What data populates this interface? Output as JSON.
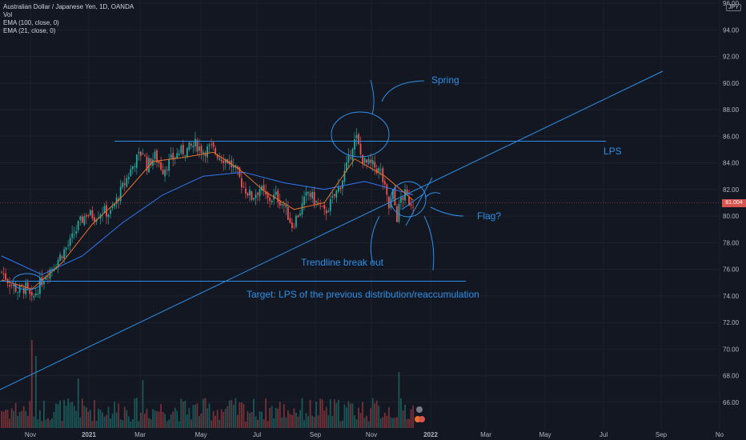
{
  "legend": {
    "symbol": "Australian Dollar / Japanese Yen, 1D, OANDA",
    "vol": "Vol",
    "ema1": "EMA (100, close, 0)",
    "ema2": "EMA (21, close, 0)"
  },
  "currency_badge": "JPY",
  "current_price": "81.004",
  "annotations": {
    "spring": "Spring",
    "lps": "LPS",
    "flag": "Flag?",
    "trendline": "Trendline break out",
    "target": "Target: LPS of the previous distribution/reaccumulation"
  },
  "colors": {
    "background": "#131722",
    "up": "#26a69a",
    "down": "#ef5350",
    "ema100": "#3179f5",
    "ema21": "#e8722c",
    "drawing": "#2f8fe6"
  },
  "chart_data": {
    "type": "candlestick",
    "title": "Australian Dollar / Japanese Yen, 1D, OANDA",
    "y_ticks": [
      96.0,
      94.0,
      92.0,
      90.0,
      88.0,
      86.0,
      84.0,
      82.0,
      80.0,
      78.0,
      76.0,
      74.0,
      72.0,
      70.0,
      68.0,
      66.0
    ],
    "y_range": [
      64.0,
      96.8
    ],
    "x_ticks": [
      "Nov",
      "2021",
      "Mar",
      "May",
      "Jul",
      "Sep",
      "Nov",
      "2022",
      "Mar",
      "May",
      "Jul",
      "Sep",
      "No"
    ],
    "close_path": [
      [
        0,
        75.8
      ],
      [
        4,
        75.0
      ],
      [
        8,
        74.4
      ],
      [
        12,
        74.6
      ],
      [
        15,
        73.6
      ],
      [
        18,
        74.6
      ],
      [
        22,
        75.7
      ],
      [
        26,
        76.3
      ],
      [
        30,
        77.2
      ],
      [
        34,
        78.0
      ],
      [
        38,
        79.3
      ],
      [
        42,
        80.2
      ],
      [
        46,
        80.0
      ],
      [
        50,
        80.4
      ],
      [
        54,
        80.2
      ],
      [
        58,
        81.5
      ],
      [
        62,
        82.8
      ],
      [
        66,
        84.1
      ],
      [
        70,
        84.9
      ],
      [
        72,
        83.8
      ],
      [
        76,
        84.5
      ],
      [
        80,
        83.5
      ],
      [
        84,
        84.2
      ],
      [
        88,
        84.8
      ],
      [
        92,
        85.0
      ],
      [
        96,
        85.4
      ],
      [
        100,
        84.9
      ],
      [
        104,
        85.1
      ],
      [
        108,
        84.5
      ],
      [
        112,
        84.2
      ],
      [
        116,
        83.4
      ],
      [
        120,
        82.2
      ],
      [
        124,
        81.4
      ],
      [
        128,
        82.1
      ],
      [
        132,
        81.2
      ],
      [
        136,
        81.5
      ],
      [
        140,
        80.8
      ],
      [
        144,
        79.3
      ],
      [
        148,
        80.4
      ],
      [
        152,
        81.8
      ],
      [
        156,
        81.0
      ],
      [
        160,
        80.2
      ],
      [
        164,
        81.2
      ],
      [
        168,
        82.4
      ],
      [
        172,
        84.1
      ],
      [
        174,
        85.4
      ],
      [
        176,
        85.8
      ],
      [
        178,
        84.6
      ],
      [
        180,
        84.0
      ],
      [
        184,
        83.8
      ],
      [
        188,
        83.3
      ],
      [
        190,
        82.0
      ],
      [
        192,
        80.6
      ],
      [
        194,
        81.7
      ],
      [
        196,
        79.9
      ],
      [
        198,
        81.3
      ],
      [
        200,
        81.6
      ],
      [
        202,
        81.1
      ],
      [
        204,
        81.0
      ]
    ],
    "series": [
      {
        "name": "EMA (100, close, 0)",
        "type": "line",
        "color": "#3179f5",
        "points": [
          [
            0,
            77.0
          ],
          [
            20,
            75.6
          ],
          [
            40,
            77.0
          ],
          [
            60,
            79.5
          ],
          [
            80,
            81.6
          ],
          [
            100,
            83.0
          ],
          [
            120,
            83.3
          ],
          [
            140,
            82.5
          ],
          [
            160,
            82.0
          ],
          [
            180,
            82.6
          ],
          [
            204,
            81.6
          ]
        ]
      },
      {
        "name": "EMA (21, close, 0)",
        "type": "line",
        "color": "#e8722c",
        "points": [
          [
            0,
            75.2
          ],
          [
            15,
            74.5
          ],
          [
            30,
            76.5
          ],
          [
            45,
            79.4
          ],
          [
            60,
            81.5
          ],
          [
            75,
            84.1
          ],
          [
            90,
            84.4
          ],
          [
            105,
            84.8
          ],
          [
            118,
            83.5
          ],
          [
            130,
            81.9
          ],
          [
            145,
            80.5
          ],
          [
            160,
            81.0
          ],
          [
            175,
            84.3
          ],
          [
            190,
            83.0
          ],
          [
            204,
            81.2
          ]
        ]
      }
    ]
  }
}
